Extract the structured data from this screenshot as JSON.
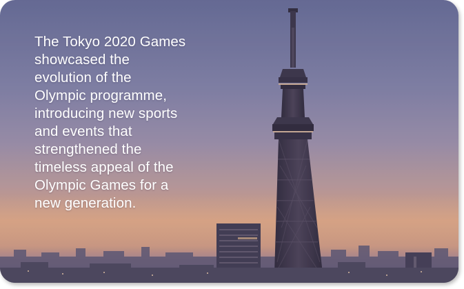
{
  "card": {
    "caption": "The Tokyo 2020 Games showcased the evolution of the Olympic programme, introducing new sports and events that strengthened the timeless appeal of the Olympic Games for a new generation."
  },
  "colors": {
    "sky_top": "#6b6f96",
    "sky_mid": "#8d86a6",
    "horizon_glow": "#d39b72",
    "tower": "#3a3346",
    "text": "#ffffff"
  },
  "icons": {
    "background": "tokyo-skytree-dusk-photo"
  }
}
